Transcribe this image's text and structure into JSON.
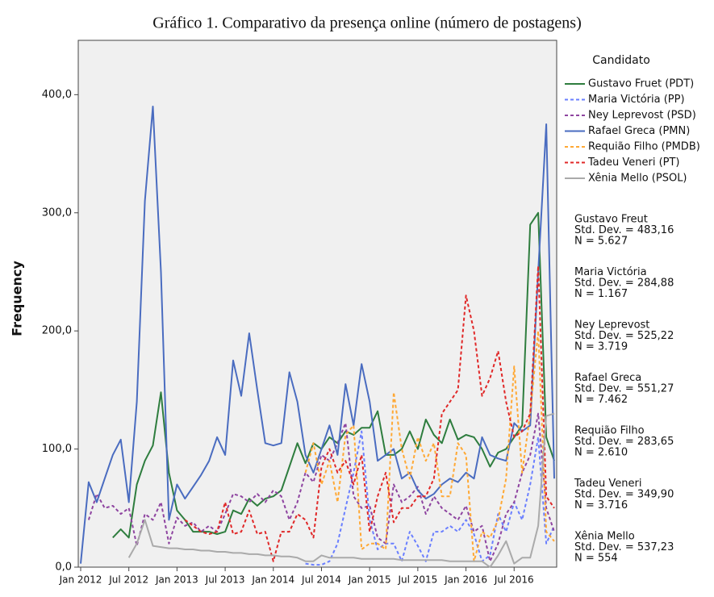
{
  "chart_data": {
    "type": "line",
    "title": "Gráfico 1. Comparativo da presença online (número de postagens)",
    "y_label": "Frequency",
    "legend_title": "Candidato",
    "x": [
      "2012-01",
      "2012-02",
      "2012-03",
      "2012-04",
      "2012-05",
      "2012-06",
      "2012-07",
      "2012-08",
      "2012-09",
      "2012-10",
      "2012-11",
      "2012-12",
      "2013-01",
      "2013-02",
      "2013-03",
      "2013-04",
      "2013-05",
      "2013-06",
      "2013-07",
      "2013-08",
      "2013-09",
      "2013-10",
      "2013-11",
      "2013-12",
      "2014-01",
      "2014-02",
      "2014-03",
      "2014-04",
      "2014-05",
      "2014-06",
      "2014-07",
      "2014-08",
      "2014-09",
      "2014-10",
      "2014-11",
      "2014-12",
      "2015-01",
      "2015-02",
      "2015-03",
      "2015-04",
      "2015-05",
      "2015-06",
      "2015-07",
      "2015-08",
      "2015-09",
      "2015-10",
      "2015-11",
      "2015-12",
      "2016-01",
      "2016-02",
      "2016-03",
      "2016-04",
      "2016-05",
      "2016-06",
      "2016-07",
      "2016-08",
      "2016-09",
      "2016-10",
      "2016-11",
      "2016-12"
    ],
    "xlim": [
      "2012-01",
      "2016-12"
    ],
    "xticks": [
      {
        "value": "2012-01",
        "label": "Jan 2012"
      },
      {
        "value": "2012-07",
        "label": "Jul 2012"
      },
      {
        "value": "2013-01",
        "label": "Jan 2013"
      },
      {
        "value": "2013-07",
        "label": "Jul 2013"
      },
      {
        "value": "2014-01",
        "label": "Jan 2014"
      },
      {
        "value": "2014-07",
        "label": "Jul 2014"
      },
      {
        "value": "2015-01",
        "label": "Jan 2015"
      },
      {
        "value": "2015-07",
        "label": "Jul 2015"
      },
      {
        "value": "2016-01",
        "label": "Jan 2016"
      },
      {
        "value": "2016-07",
        "label": "Jul 2016"
      }
    ],
    "ylim": [
      0,
      446
    ],
    "yticks": [
      {
        "value": 0,
        "label": "0,0"
      },
      {
        "value": 100,
        "label": "100,0"
      },
      {
        "value": 200,
        "label": "200,0"
      },
      {
        "value": 300,
        "label": "300,0"
      },
      {
        "value": 400,
        "label": "400,0"
      }
    ],
    "series": [
      {
        "name": "Gustavo Fruet (PDT)",
        "color": "#2e7d3e",
        "dashed": false,
        "values": [
          null,
          null,
          null,
          null,
          25,
          32,
          25,
          70,
          90,
          103,
          148,
          80,
          48,
          40,
          30,
          30,
          30,
          28,
          30,
          48,
          45,
          58,
          52,
          58,
          60,
          65,
          85,
          105,
          88,
          105,
          100,
          110,
          105,
          115,
          112,
          118,
          118,
          132,
          95,
          95,
          100,
          115,
          100,
          125,
          112,
          105,
          125,
          108,
          112,
          110,
          100,
          85,
          97,
          100,
          110,
          120,
          290,
          300,
          110,
          90
        ]
      },
      {
        "name": "Maria Victória (PP)",
        "color": "#6a7fff",
        "dashed": true,
        "values": [
          null,
          null,
          null,
          null,
          null,
          null,
          null,
          null,
          null,
          null,
          null,
          null,
          null,
          null,
          null,
          null,
          null,
          null,
          null,
          null,
          null,
          null,
          null,
          null,
          null,
          null,
          null,
          null,
          3,
          2,
          2,
          5,
          20,
          50,
          80,
          115,
          40,
          15,
          20,
          20,
          5,
          30,
          18,
          5,
          30,
          30,
          35,
          30,
          40,
          28,
          5,
          10,
          45,
          30,
          55,
          40,
          70,
          110,
          20,
          35
        ]
      },
      {
        "name": "Ney Leprevost (PSD)",
        "color": "#8e44a0",
        "dashed": true,
        "values": [
          null,
          40,
          62,
          50,
          52,
          45,
          50,
          18,
          45,
          40,
          55,
          20,
          42,
          35,
          38,
          30,
          35,
          30,
          45,
          62,
          60,
          55,
          62,
          55,
          65,
          60,
          40,
          55,
          80,
          72,
          95,
          90,
          105,
          122,
          60,
          50,
          52,
          25,
          20,
          70,
          55,
          60,
          68,
          45,
          60,
          50,
          45,
          40,
          52,
          30,
          35,
          5,
          20,
          45,
          55,
          80,
          95,
          130,
          50,
          30
        ]
      },
      {
        "name": "Rafael Greca (PMN)",
        "color": "#4a6cc0",
        "dashed": false,
        "values": [
          3,
          72,
          55,
          75,
          95,
          108,
          55,
          140,
          310,
          390,
          250,
          40,
          70,
          58,
          68,
          78,
          90,
          110,
          95,
          175,
          145,
          198,
          150,
          105,
          103,
          105,
          165,
          140,
          95,
          80,
          100,
          120,
          95,
          155,
          120,
          172,
          140,
          90,
          95,
          100,
          75,
          80,
          65,
          58,
          62,
          70,
          75,
          72,
          80,
          75,
          110,
          95,
          92,
          90,
          122,
          115,
          120,
          250,
          375,
          75
        ]
      },
      {
        "name": "Requião Filho (PMDB)",
        "color": "#ffa834",
        "dashed": true,
        "values": [
          null,
          null,
          null,
          null,
          null,
          null,
          null,
          null,
          null,
          null,
          null,
          null,
          null,
          null,
          null,
          null,
          null,
          null,
          null,
          null,
          null,
          null,
          null,
          null,
          null,
          null,
          null,
          null,
          80,
          105,
          70,
          90,
          55,
          112,
          120,
          15,
          20,
          20,
          15,
          148,
          100,
          75,
          110,
          90,
          105,
          60,
          60,
          105,
          95,
          5,
          30,
          25,
          40,
          75,
          170,
          80,
          130,
          200,
          30,
          22
        ]
      },
      {
        "name": "Tadeu Veneri (PT)",
        "color": "#e02828",
        "dashed": true,
        "values": [
          null,
          null,
          null,
          null,
          null,
          null,
          null,
          null,
          null,
          null,
          null,
          null,
          null,
          40,
          35,
          30,
          28,
          30,
          55,
          28,
          30,
          48,
          28,
          30,
          5,
          30,
          30,
          45,
          40,
          25,
          85,
          100,
          80,
          90,
          70,
          95,
          30,
          60,
          80,
          38,
          50,
          50,
          60,
          60,
          75,
          130,
          140,
          150,
          230,
          200,
          145,
          160,
          183,
          140,
          110,
          115,
          130,
          255,
          60,
          50
        ]
      },
      {
        "name": "Xênia Mello (PSOL)",
        "color": "#aaaaaa",
        "dashed": false,
        "values": [
          null,
          null,
          null,
          null,
          null,
          null,
          8,
          20,
          40,
          18,
          17,
          16,
          16,
          15,
          15,
          14,
          14,
          13,
          13,
          12,
          12,
          11,
          11,
          10,
          10,
          9,
          9,
          8,
          5,
          5,
          10,
          8,
          8,
          8,
          8,
          7,
          7,
          7,
          7,
          7,
          6,
          6,
          6,
          6,
          6,
          6,
          5,
          5,
          5,
          5,
          5,
          0,
          10,
          22,
          3,
          8,
          8,
          35,
          128,
          130
        ]
      }
    ],
    "stats": [
      [
        "Gustavo Freut",
        "Std. Dev. = 483,16",
        "N = 5.627"
      ],
      [
        "Maria Victória",
        "Std. Dev. = 284,88",
        "N = 1.167"
      ],
      [
        "Ney Leprevost",
        "Std. Dev. = 525,22",
        "N = 3.719"
      ],
      [
        "Rafael Greca",
        "Std. Dev. = 551,27",
        "N = 7.462"
      ],
      [
        "Requião Filho",
        "Std. Dev. = 283,65",
        "N = 2.610"
      ],
      [
        "Tadeu Veneri",
        "Std. Dev. = 349,90",
        "N = 3.716"
      ],
      [
        "Xênia Mello",
        "Std. Dev. = 537,23",
        "N = 554"
      ]
    ]
  }
}
